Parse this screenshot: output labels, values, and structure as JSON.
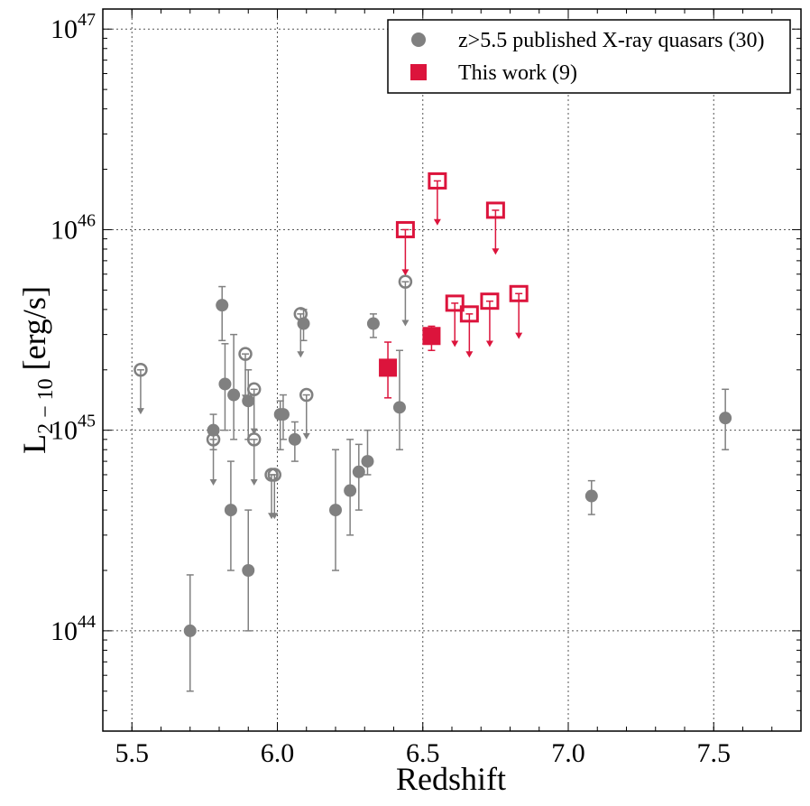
{
  "chart_data": {
    "type": "scatter",
    "title": "",
    "xlabel": "Redshift",
    "ylabel_main": "L",
    "ylabel_subscript": "2 − 10",
    "ylabel_unit": " [erg/s]",
    "xlim": [
      5.4,
      7.8
    ],
    "ylim_log10": [
      43.5,
      47.1
    ],
    "yscale": "log",
    "grid": true,
    "legend_position": "top-right",
    "x_ticks": [
      5.5,
      6.0,
      6.5,
      7.0,
      7.5
    ],
    "x_tick_labels": [
      "5.5",
      "6.0",
      "6.5",
      "7.0",
      "7.5"
    ],
    "y_ticks_log10": [
      44,
      45,
      46,
      47
    ],
    "y_tick_base": "10",
    "y_tick_exponents": [
      "44",
      "45",
      "46",
      "47"
    ],
    "colors": {
      "published": "#808080",
      "this_work": "#dc143c"
    },
    "legend": [
      {
        "label": "z>5.5 published X-ray quasars (30)",
        "marker": "circle",
        "color": "#808080"
      },
      {
        "label": "This work (9)",
        "marker": "square",
        "color": "#dc143c"
      }
    ],
    "series": [
      {
        "name": "z>5.5 published X-ray quasars (30)",
        "points": [
          {
            "x": 5.7,
            "y": 1e+44,
            "ylo": 5e+43,
            "yhi": 1.9e+44
          },
          {
            "x": 5.78,
            "y": 1e+45,
            "ylo": 8e+44,
            "yhi": 1.2e+45
          },
          {
            "x": 5.81,
            "y": 4.2e+45,
            "ylo": 2.8e+45,
            "yhi": 5.2e+45
          },
          {
            "x": 5.82,
            "y": 1.7e+45,
            "ylo": 1e+45,
            "yhi": 2.7e+45
          },
          {
            "x": 5.84,
            "y": 4e+44,
            "ylo": 2e+44,
            "yhi": 7e+44
          },
          {
            "x": 5.85,
            "y": 1.5e+45,
            "ylo": 9e+44,
            "yhi": 3e+45
          },
          {
            "x": 5.9,
            "y": 1.4e+45,
            "ylo": 9e+44,
            "yhi": 2e+45
          },
          {
            "x": 5.9,
            "y": 2e+44,
            "ylo": 1e+44,
            "yhi": 4e+44
          },
          {
            "x": 6.01,
            "y": 1.2e+45,
            "ylo": 8e+44,
            "yhi": 1.4e+45
          },
          {
            "x": 6.02,
            "y": 1.2e+45,
            "ylo": 9e+44,
            "yhi": 1.5e+45
          },
          {
            "x": 6.06,
            "y": 9e+44,
            "ylo": 7e+44,
            "yhi": 1.1e+45
          },
          {
            "x": 6.09,
            "y": 3.4e+45,
            "ylo": 2.8e+45,
            "yhi": 4e+45
          },
          {
            "x": 6.2,
            "y": 4e+44,
            "ylo": 2e+44,
            "yhi": 8e+44
          },
          {
            "x": 6.25,
            "y": 5e+44,
            "ylo": 3e+44,
            "yhi": 9e+44
          },
          {
            "x": 6.28,
            "y": 6.2e+44,
            "ylo": 4e+44,
            "yhi": 8.5e+44
          },
          {
            "x": 6.31,
            "y": 7e+44,
            "ylo": 6e+44,
            "yhi": 1e+45
          },
          {
            "x": 6.33,
            "y": 3.4e+45,
            "ylo": 2.9e+45,
            "yhi": 3.8e+45
          },
          {
            "x": 6.42,
            "y": 1.3e+45,
            "ylo": 8e+44,
            "yhi": 2.5e+45
          },
          {
            "x": 7.08,
            "y": 4.7e+44,
            "ylo": 3.8e+44,
            "yhi": 5.6e+44
          },
          {
            "x": 7.54,
            "y": 1.15e+45,
            "ylo": 8e+44,
            "yhi": 1.6e+45
          }
        ],
        "upper_limits": [
          {
            "x": 5.53,
            "y": 2e+45,
            "arrow_to": 1.2e+45
          },
          {
            "x": 5.78,
            "y": 9e+44,
            "arrow_to": 5.3e+44
          },
          {
            "x": 5.89,
            "y": 2.4e+45,
            "arrow_to": 1.4e+45
          },
          {
            "x": 5.92,
            "y": 1.6e+45,
            "arrow_to": 9.5e+44
          },
          {
            "x": 5.92,
            "y": 9e+44,
            "arrow_to": 5.3e+44
          },
          {
            "x": 5.98,
            "y": 6e+44,
            "arrow_to": 3.6e+44
          },
          {
            "x": 5.99,
            "y": 6e+44,
            "arrow_to": 3.6e+44
          },
          {
            "x": 6.08,
            "y": 3.8e+45,
            "arrow_to": 2.3e+45
          },
          {
            "x": 6.1,
            "y": 1.5e+45,
            "arrow_to": 9e+44
          },
          {
            "x": 6.44,
            "y": 5.5e+45,
            "arrow_to": 3.3e+45
          }
        ]
      },
      {
        "name": "This work (9)",
        "points": [
          {
            "x": 6.38,
            "y": 2.05e+45,
            "ylo": 1.45e+45,
            "yhi": 2.75e+45
          },
          {
            "x": 6.53,
            "y": 2.95e+45,
            "ylo": 2.5e+45,
            "yhi": 3.3e+45
          }
        ],
        "upper_limits": [
          {
            "x": 6.44,
            "y": 1e+46,
            "arrow_to": 5.9e+45
          },
          {
            "x": 6.55,
            "y": 1.75e+46,
            "arrow_to": 1.05e+46
          },
          {
            "x": 6.61,
            "y": 4.3e+45,
            "arrow_to": 2.6e+45
          },
          {
            "x": 6.66,
            "y": 3.8e+45,
            "arrow_to": 2.3e+45
          },
          {
            "x": 6.73,
            "y": 4.4e+45,
            "arrow_to": 2.6e+45
          },
          {
            "x": 6.75,
            "y": 1.25e+46,
            "arrow_to": 7.5e+45
          },
          {
            "x": 6.83,
            "y": 4.8e+45,
            "arrow_to": 2.85e+45
          }
        ]
      }
    ]
  }
}
